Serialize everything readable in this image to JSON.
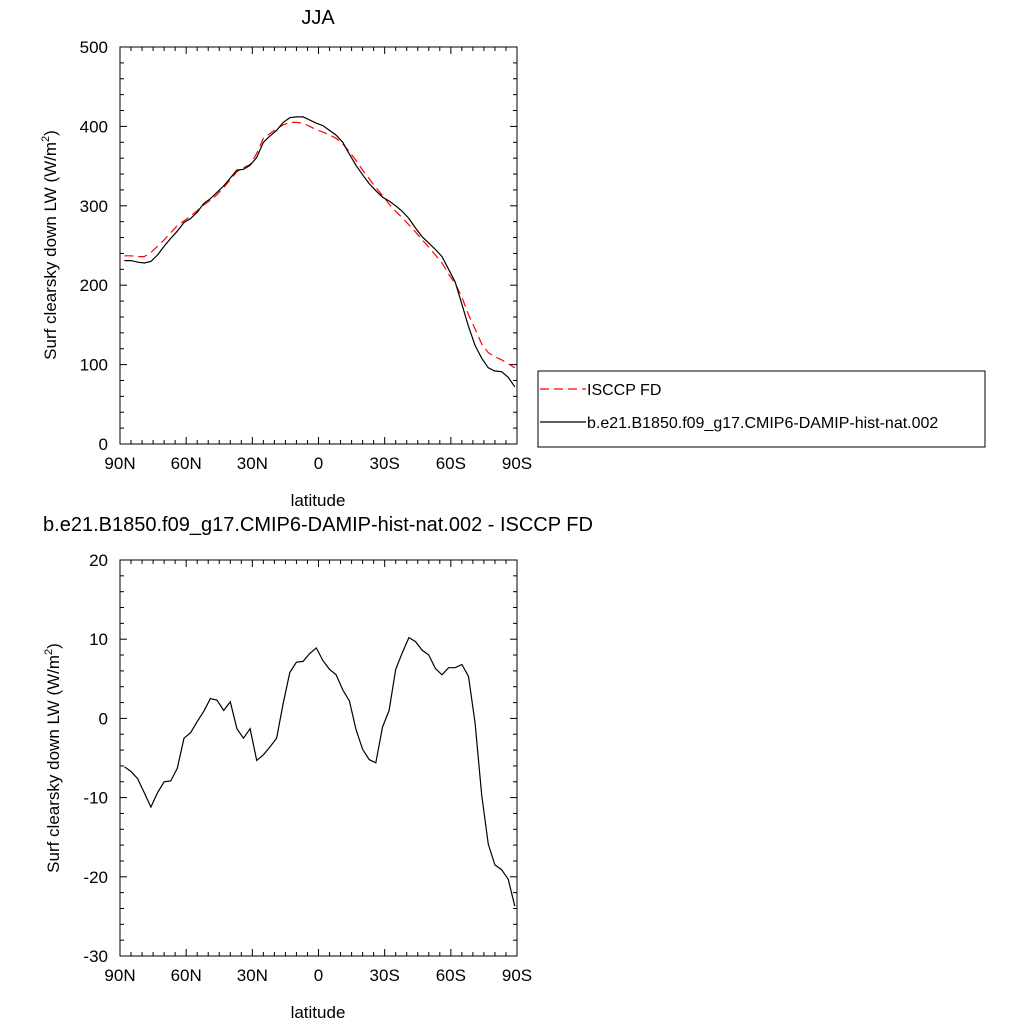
{
  "chart_data": [
    {
      "type": "line",
      "title": "JJA",
      "xlabel": "latitude",
      "ylabel": "Surf clearsky down LW (W/m",
      "ylabel_sup": "2",
      "ylabel_close": ")",
      "xlim": [
        90,
        -90
      ],
      "ylim": [
        0,
        500
      ],
      "x_ticks": [
        90,
        60,
        30,
        0,
        -30,
        -60,
        -90
      ],
      "x_tick_labels": [
        "90N",
        "60N",
        "30N",
        "0",
        "30S",
        "60S",
        "90S"
      ],
      "y_ticks": [
        0,
        100,
        200,
        300,
        400,
        500
      ],
      "y_tick_labels": [
        "0",
        "100",
        "200",
        "300",
        "400",
        "500"
      ],
      "grid": false,
      "legend_placement": "right",
      "series": [
        {
          "name": "ISCCP FD",
          "color": "#ff0000",
          "dash": "dashed",
          "x": [
            88,
            85,
            82,
            79,
            76,
            73,
            70,
            67,
            64,
            61,
            58,
            55,
            52,
            49,
            46,
            43,
            40,
            37,
            34,
            31,
            28,
            25,
            22,
            19,
            16,
            13,
            10,
            7,
            4,
            1,
            -2,
            -5,
            -8,
            -11,
            -14,
            -17,
            -20,
            -23,
            -26,
            -29,
            -32,
            -35,
            -38,
            -41,
            -44,
            -47,
            -50,
            -53,
            -56,
            -59,
            -62,
            -65,
            -68,
            -71,
            -74,
            -77,
            -80,
            -83,
            -86,
            -89
          ],
          "y": [
            237,
            237,
            236,
            236,
            241,
            249,
            257,
            266,
            275,
            281,
            287,
            294,
            301,
            307,
            314,
            323,
            333,
            343,
            348,
            352,
            366,
            385,
            391,
            397,
            402,
            405,
            405,
            404,
            400,
            396,
            393,
            389,
            385,
            378,
            368,
            357,
            345,
            334,
            323,
            313,
            302,
            293,
            285,
            276,
            267,
            257,
            248,
            238,
            228,
            214,
            202,
            185,
            163,
            145,
            126,
            115,
            110,
            106,
            101,
            96
          ]
        },
        {
          "name": "b.e21.B1850.f09_g17.CMIP6-DAMIP-hist-nat.002",
          "color": "#000000",
          "dash": "solid",
          "x": [
            88,
            85,
            82,
            79,
            76,
            73,
            70,
            67,
            64,
            61,
            58,
            55,
            52,
            49,
            46,
            43,
            40,
            37,
            34,
            31,
            28,
            25,
            22,
            19,
            16,
            13,
            10,
            7,
            4,
            1,
            -2,
            -5,
            -8,
            -11,
            -14,
            -17,
            -20,
            -23,
            -26,
            -29,
            -32,
            -35,
            -38,
            -41,
            -44,
            -47,
            -50,
            -53,
            -56,
            -59,
            -62,
            -65,
            -68,
            -71,
            -74,
            -77,
            -80,
            -83,
            -86,
            -89
          ],
          "y": [
            231,
            231,
            229,
            228,
            230,
            238,
            249,
            259,
            268,
            279,
            284,
            292,
            303,
            309,
            317,
            325,
            335,
            345,
            346,
            351,
            361,
            380,
            388,
            395,
            405,
            411,
            412,
            412,
            408,
            404,
            401,
            395,
            389,
            380,
            365,
            351,
            339,
            328,
            319,
            311,
            306,
            300,
            293,
            284,
            272,
            261,
            253,
            245,
            236,
            220,
            204,
            176,
            148,
            124,
            108,
            96,
            92,
            91,
            84,
            72
          ]
        }
      ]
    },
    {
      "type": "line",
      "title": "b.e21.B1850.f09_g17.CMIP6-DAMIP-hist-nat.002 - ISCCP FD",
      "xlabel": "latitude",
      "ylabel": "Surf clearsky down LW (W/m",
      "ylabel_sup": "2",
      "ylabel_close": ")",
      "xlim": [
        90,
        -90
      ],
      "ylim": [
        -30,
        20
      ],
      "x_ticks": [
        90,
        60,
        30,
        0,
        -30,
        -60,
        -90
      ],
      "x_tick_labels": [
        "90N",
        "60N",
        "30N",
        "0",
        "30S",
        "60S",
        "90S"
      ],
      "y_ticks": [
        -30,
        -20,
        -10,
        0,
        10,
        20
      ],
      "y_tick_labels": [
        "-30",
        "-20",
        "-10",
        "0",
        "10",
        "20"
      ],
      "grid": false,
      "series": [
        {
          "color": "#000000",
          "dash": "solid",
          "x": [
            88,
            85,
            82,
            79,
            76,
            73,
            70,
            67,
            64,
            61,
            58,
            55,
            52,
            49,
            46,
            43,
            40,
            37,
            34,
            31,
            28,
            25,
            22,
            19,
            16,
            13,
            10,
            7,
            4,
            1,
            -2,
            -5,
            -8,
            -11,
            -14,
            -17,
            -20,
            -23,
            -26,
            -29,
            -32,
            -35,
            -38,
            -41,
            -44,
            -47,
            -50,
            -53,
            -56,
            -59,
            -62,
            -65,
            -68,
            -71,
            -74,
            -77,
            -80,
            -83,
            -86,
            -89
          ],
          "y": [
            -6.1,
            -6.7,
            -7.6,
            -9.4,
            -11.2,
            -9.4,
            -8.0,
            -7.9,
            -6.3,
            -2.5,
            -1.8,
            -0.4,
            0.9,
            2.5,
            2.3,
            1.0,
            2.1,
            -1.3,
            -2.5,
            -1.3,
            -5.3,
            -4.6,
            -3.6,
            -2.5,
            1.9,
            5.8,
            7.1,
            7.2,
            8.2,
            8.9,
            7.3,
            6.2,
            5.5,
            3.6,
            2.2,
            -1.4,
            -3.9,
            -5.2,
            -5.6,
            -1.1,
            1.0,
            6.2,
            8.3,
            10.2,
            9.7,
            8.6,
            8.0,
            6.3,
            5.5,
            6.4,
            6.4,
            6.8,
            5.3,
            -0.6,
            -9.7,
            -15.9,
            -18.5,
            -19.1,
            -20.3,
            -23.7
          ]
        }
      ]
    }
  ]
}
